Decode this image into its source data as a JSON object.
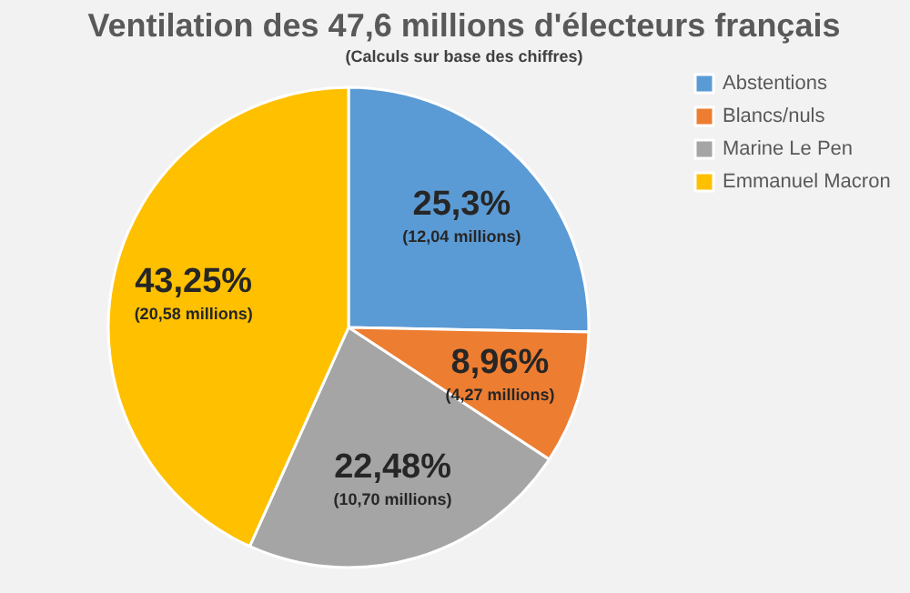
{
  "chart_data": {
    "type": "pie",
    "title": "Ventilation des 47,6 millions d'électeurs français",
    "subtitle": "(Calculs sur base des chiffres)",
    "categories": [
      "Abstentions",
      "Blancs/nuls",
      "Marine Le Pen",
      "Emmanuel Macron"
    ],
    "values": [
      25.3,
      8.96,
      22.48,
      43.25
    ],
    "colors": [
      "#5b9bd5",
      "#ed7d31",
      "#a5a5a5",
      "#ffc000"
    ],
    "value_labels": [
      "25,3%\n(12,04 millions)",
      "8,96%\n(4,27 millions)",
      "22,48%\n(10,70 millions)",
      "43,25%\n(20,58 millions)"
    ],
    "legend": "right"
  }
}
